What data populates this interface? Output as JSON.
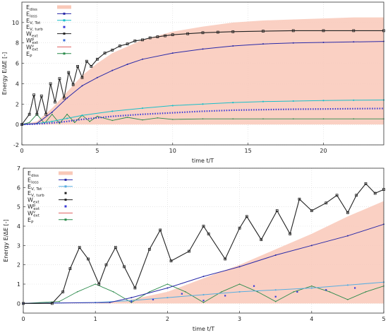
{
  "chart_data": [
    {
      "type": "line",
      "xlabel": "time t/T",
      "ylabel": "Energy E/ΔE [-]",
      "xlim": [
        0,
        24
      ],
      "ylim": [
        -2,
        12
      ],
      "xticks": [
        0,
        5,
        10,
        15,
        20
      ],
      "yticks": [
        -2,
        0,
        2,
        4,
        6,
        8,
        10
      ],
      "grid": true,
      "legend_position": "top-left",
      "legend": [
        {
          "label": "E",
          "sub": "diss",
          "sup": "",
          "color": "#f9c8b8",
          "style": "band"
        },
        {
          "label": "E",
          "sub": "loss",
          "sup": "",
          "color": "#2a2aa8",
          "style": "line-marker"
        },
        {
          "label": "E",
          "sub": "V, Tot",
          "sup": "",
          "color": "#1bbfc8",
          "style": "line-marker"
        },
        {
          "label": "E",
          "sub": "V, turb",
          "sup": "",
          "color": "#3a3ad8",
          "style": "marker"
        },
        {
          "label": "W",
          "sub": "ext",
          "sup": "",
          "color": "#222222",
          "style": "line-marker"
        },
        {
          "label": "W",
          "sub": "ext",
          "sup": "p",
          "color": "#3a6ad8",
          "style": "marker"
        },
        {
          "label": "W",
          "sub": "ext",
          "sup": "v",
          "color": "#e06060",
          "style": "line"
        },
        {
          "label": "E",
          "sub": "P",
          "sup": "",
          "color": "#2a8a4a",
          "style": "line-marker"
        }
      ],
      "series": [
        {
          "key": "E_diss_upper",
          "x": [
            0,
            1,
            2,
            3,
            4,
            5,
            6,
            8,
            10,
            12,
            14,
            16,
            18,
            20,
            22,
            24
          ],
          "values": [
            0,
            0.3,
            1.6,
            3.2,
            4.8,
            6.0,
            7.0,
            8.3,
            9.1,
            9.6,
            10.0,
            10.2,
            10.3,
            10.4,
            10.5,
            10.5
          ]
        },
        {
          "key": "E_loss",
          "x": [
            0,
            1,
            2,
            3,
            4,
            5,
            6,
            7,
            8,
            10,
            12,
            14,
            16,
            18,
            20,
            22,
            24
          ],
          "values": [
            0,
            0.1,
            1.2,
            2.6,
            3.8,
            4.6,
            5.3,
            5.9,
            6.4,
            7.0,
            7.4,
            7.7,
            7.9,
            8.0,
            8.05,
            8.1,
            8.15
          ]
        },
        {
          "key": "E_V_tot",
          "x": [
            0,
            1,
            2,
            3,
            4,
            6,
            8,
            10,
            12,
            14,
            16,
            18,
            20,
            22,
            24
          ],
          "values": [
            0,
            0.1,
            0.3,
            0.6,
            0.9,
            1.3,
            1.6,
            1.85,
            2.0,
            2.15,
            2.25,
            2.3,
            2.35,
            2.38,
            2.4
          ]
        },
        {
          "key": "E_V_turb",
          "x": [
            0,
            1,
            2,
            3,
            4,
            6,
            8,
            10,
            12,
            14,
            16,
            18,
            20,
            22,
            24
          ],
          "values": [
            0,
            0.05,
            0.15,
            0.3,
            0.5,
            0.8,
            1.0,
            1.15,
            1.3,
            1.4,
            1.45,
            1.5,
            1.52,
            1.55,
            1.57
          ]
        },
        {
          "key": "W_ext",
          "x": [
            0,
            0.5,
            0.8,
            1.0,
            1.3,
            1.6,
            1.9,
            2.2,
            2.5,
            2.8,
            3.1,
            3.4,
            3.7,
            4.0,
            4.3,
            4.6,
            5.0,
            5.5,
            6.0,
            6.5,
            7.0,
            7.5,
            8.0,
            8.5,
            9.0,
            9.5,
            10.0,
            11,
            12,
            13,
            14,
            16,
            18,
            20,
            22,
            24
          ],
          "values": [
            0,
            1.0,
            2.9,
            1.0,
            2.8,
            1.0,
            4.0,
            2.2,
            4.5,
            2.6,
            5.1,
            3.9,
            5.7,
            4.6,
            6.2,
            5.7,
            6.4,
            7.0,
            7.3,
            7.7,
            7.9,
            8.2,
            8.3,
            8.5,
            8.6,
            8.7,
            8.8,
            8.9,
            9.0,
            9.05,
            9.1,
            9.15,
            9.2,
            9.2,
            9.2,
            9.2
          ]
        },
        {
          "key": "E_P",
          "x": [
            0,
            0.5,
            1.0,
            1.5,
            2.0,
            2.5,
            3.0,
            3.5,
            4.0,
            4.5,
            5.0,
            6,
            7,
            8,
            9,
            10,
            12,
            14,
            16,
            18,
            20,
            22,
            24
          ],
          "values": [
            0,
            0.2,
            1.0,
            0.1,
            1.0,
            0.1,
            1.0,
            0.2,
            0.9,
            0.3,
            0.8,
            0.4,
            0.7,
            0.45,
            0.65,
            0.5,
            0.55,
            0.55,
            0.55,
            0.55,
            0.55,
            0.55,
            0.55
          ]
        }
      ]
    },
    {
      "type": "line",
      "xlabel": "time t/T",
      "ylabel": "Energy E/ΔE [-]",
      "xlim": [
        0,
        5
      ],
      "ylim": [
        -0.5,
        7
      ],
      "xticks": [
        0,
        1,
        2,
        3,
        4,
        5
      ],
      "yticks": [
        0,
        1,
        2,
        3,
        4,
        5,
        6,
        7
      ],
      "grid": true,
      "legend_position": "top-left",
      "legend": [
        {
          "label": "E",
          "sub": "diss",
          "sup": "",
          "color": "#f9c8b8",
          "style": "band"
        },
        {
          "label": "E",
          "sub": "loss",
          "sup": "",
          "color": "#2a2aa8",
          "style": "line-marker"
        },
        {
          "label": "E",
          "sub": "V, Tot",
          "sup": "",
          "color": "#5aaee0",
          "style": "line-marker"
        },
        {
          "label": "E",
          "sub": "V, turb",
          "sup": "",
          "color": "#222222",
          "style": "marker"
        },
        {
          "label": "W",
          "sub": "ext",
          "sup": "",
          "color": "#222222",
          "style": "line-marker"
        },
        {
          "label": "W",
          "sub": "ext",
          "sup": "p",
          "color": "#3a3ad8",
          "style": "marker"
        },
        {
          "label": "W",
          "sub": "ext",
          "sup": "v",
          "color": "#e06060",
          "style": "line"
        },
        {
          "label": "E",
          "sub": "P",
          "sup": "",
          "color": "#2a8a4a",
          "style": "line-marker"
        }
      ],
      "series": [
        {
          "key": "E_diss_upper",
          "x": [
            0,
            1.0,
            1.5,
            2.0,
            2.5,
            3.0,
            3.5,
            4.0,
            4.5,
            5.0
          ],
          "values": [
            0,
            0,
            0.2,
            0.6,
            1.3,
            2.0,
            2.8,
            3.6,
            4.5,
            5.3
          ]
        },
        {
          "key": "E_loss",
          "x": [
            0,
            1.2,
            1.5,
            2.0,
            2.5,
            3.0,
            3.5,
            4.0,
            4.5,
            5.0
          ],
          "values": [
            0,
            0.05,
            0.3,
            0.8,
            1.4,
            1.9,
            2.5,
            3.0,
            3.5,
            4.1
          ]
        },
        {
          "key": "E_V_tot",
          "x": [
            0,
            1.0,
            1.5,
            2.0,
            2.5,
            3.0,
            3.5,
            4.0,
            4.5,
            5.0
          ],
          "values": [
            0,
            0.05,
            0.15,
            0.3,
            0.45,
            0.6,
            0.7,
            0.8,
            0.95,
            1.1
          ]
        },
        {
          "key": "W_ext_p",
          "x": [
            1.5,
            1.8,
            2.2,
            2.5,
            2.8,
            3.2,
            3.5,
            3.8,
            4.2,
            4.6
          ],
          "values": [
            0.1,
            0.2,
            0.5,
            0.15,
            0.4,
            0.9,
            0.35,
            0.6,
            0.7,
            0.8
          ]
        },
        {
          "key": "W_ext",
          "x": [
            0,
            0.4,
            0.55,
            0.65,
            0.78,
            0.9,
            1.05,
            1.15,
            1.28,
            1.4,
            1.55,
            1.75,
            1.9,
            2.05,
            2.3,
            2.5,
            2.57,
            2.8,
            3.0,
            3.1,
            3.3,
            3.52,
            3.7,
            3.83,
            4.0,
            4.2,
            4.35,
            4.5,
            4.62,
            4.75,
            4.88,
            5.0
          ],
          "values": [
            0,
            0,
            0.6,
            1.8,
            2.9,
            2.3,
            1.0,
            2.0,
            2.9,
            1.9,
            0.8,
            2.8,
            3.8,
            2.2,
            2.7,
            4.0,
            3.6,
            2.3,
            3.9,
            4.5,
            3.3,
            4.8,
            3.6,
            5.4,
            4.8,
            5.2,
            5.6,
            4.7,
            5.6,
            6.2,
            5.7,
            5.9
          ]
        },
        {
          "key": "E_P",
          "x": [
            0,
            0.5,
            0.75,
            1.0,
            1.25,
            1.5,
            1.75,
            2.0,
            2.25,
            2.5,
            2.75,
            3.0,
            3.25,
            3.5,
            3.75,
            4.0,
            4.25,
            4.5,
            4.75,
            5.0
          ],
          "values": [
            0,
            0.1,
            0.6,
            1.0,
            0.6,
            0.05,
            0.6,
            1.0,
            0.6,
            0.05,
            0.6,
            1.0,
            0.6,
            0.1,
            0.6,
            0.9,
            0.6,
            0.2,
            0.6,
            0.9
          ]
        }
      ]
    }
  ]
}
